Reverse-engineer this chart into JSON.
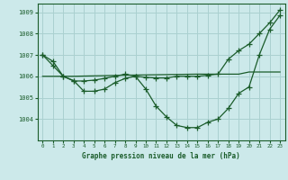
{
  "background_color": "#cce9ea",
  "grid_color": "#aad0d0",
  "line_color": "#1a5c2a",
  "title": "Graphe pression niveau de la mer (hPa)",
  "xlim": [
    -0.5,
    23.5
  ],
  "ylim": [
    1003.0,
    1009.4
  ],
  "yticks": [
    1004,
    1005,
    1006,
    1007,
    1008,
    1009
  ],
  "xticks": [
    0,
    1,
    2,
    3,
    4,
    5,
    6,
    7,
    8,
    9,
    10,
    11,
    12,
    13,
    14,
    15,
    16,
    17,
    18,
    19,
    20,
    21,
    22,
    23
  ],
  "series1_x": [
    0,
    1,
    2,
    3,
    4,
    5,
    6,
    7,
    8,
    9,
    10,
    11,
    12,
    13,
    14,
    15,
    16,
    17,
    18,
    19,
    20,
    21,
    22,
    23
  ],
  "series1_y": [
    1007.0,
    1006.7,
    1006.0,
    1005.8,
    1005.3,
    1005.3,
    1005.4,
    1005.7,
    1005.9,
    1006.0,
    1005.4,
    1004.6,
    1004.1,
    1003.7,
    1003.6,
    1003.6,
    1003.85,
    1004.0,
    1004.5,
    1005.2,
    1005.5,
    1007.0,
    1008.2,
    1008.85
  ],
  "series2_x": [
    0,
    3,
    8,
    15,
    19,
    20,
    23
  ],
  "series2_y": [
    1006.0,
    1006.0,
    1006.05,
    1006.1,
    1006.1,
    1006.2,
    1006.2
  ],
  "series3_x": [
    0,
    1,
    2,
    3,
    4,
    5,
    6,
    7,
    8,
    9,
    10,
    11,
    12,
    13,
    14,
    15,
    16,
    17,
    18,
    19,
    20,
    21,
    22,
    23
  ],
  "series3_y": [
    1007.0,
    1006.5,
    1006.0,
    1005.78,
    1005.78,
    1005.82,
    1005.9,
    1006.0,
    1006.1,
    1006.0,
    1005.95,
    1005.92,
    1005.92,
    1006.0,
    1006.0,
    1006.0,
    1006.05,
    1006.1,
    1006.8,
    1007.2,
    1007.5,
    1008.0,
    1008.5,
    1009.1
  ]
}
